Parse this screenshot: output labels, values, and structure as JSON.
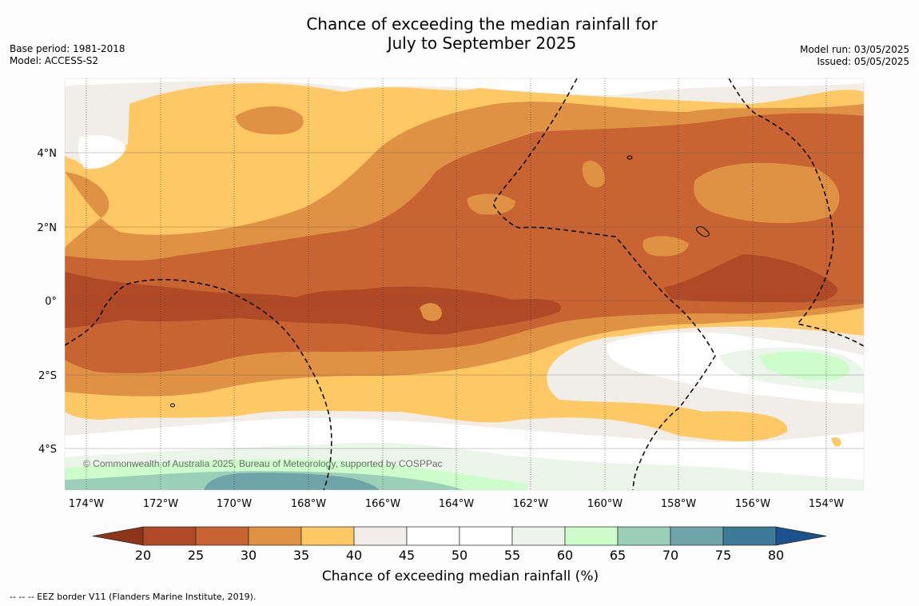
{
  "title": {
    "line1": "Chance of exceeding the median rainfall for",
    "line2": "July to September 2025"
  },
  "meta_left": {
    "base_period": "Base period: 1981-2018",
    "model": "Model: ACCESS-S2"
  },
  "meta_right": {
    "model_run": "Model run: 03/05/2025",
    "issued": "Issued: 05/05/2025"
  },
  "map": {
    "lon_labels": [
      "174°W",
      "172°W",
      "170°W",
      "168°W",
      "166°W",
      "164°W",
      "162°W",
      "160°W",
      "158°W",
      "156°W",
      "154°W"
    ],
    "lat_labels": [
      "4°N",
      "2°N",
      "0°",
      "2°S",
      "4°S"
    ],
    "copyright": "© Commonwealth of Australia 2025, Bureau of Meteorology, supported by COSPPac"
  },
  "colorbar": {
    "ticks": [
      "20",
      "25",
      "30",
      "35",
      "40",
      "45",
      "50",
      "55",
      "60",
      "65",
      "70",
      "75",
      "80"
    ],
    "colors": [
      "#b04a26",
      "#c86432",
      "#e09244",
      "#fec865",
      "#f1ede8",
      "#ffffff",
      "#ffffff",
      "#ebf5e9",
      "#ccfdca",
      "#9ccfb7",
      "#6fa4a8",
      "#3d7a98"
    ],
    "under_color": "#8c3519",
    "over_color": "#1b528e",
    "label": "Chance of exceeding median rainfall (%)"
  },
  "footer": {
    "eez_note": "--  --  -- EEZ border V11 (Flanders Marine Institute, 2019)."
  }
}
